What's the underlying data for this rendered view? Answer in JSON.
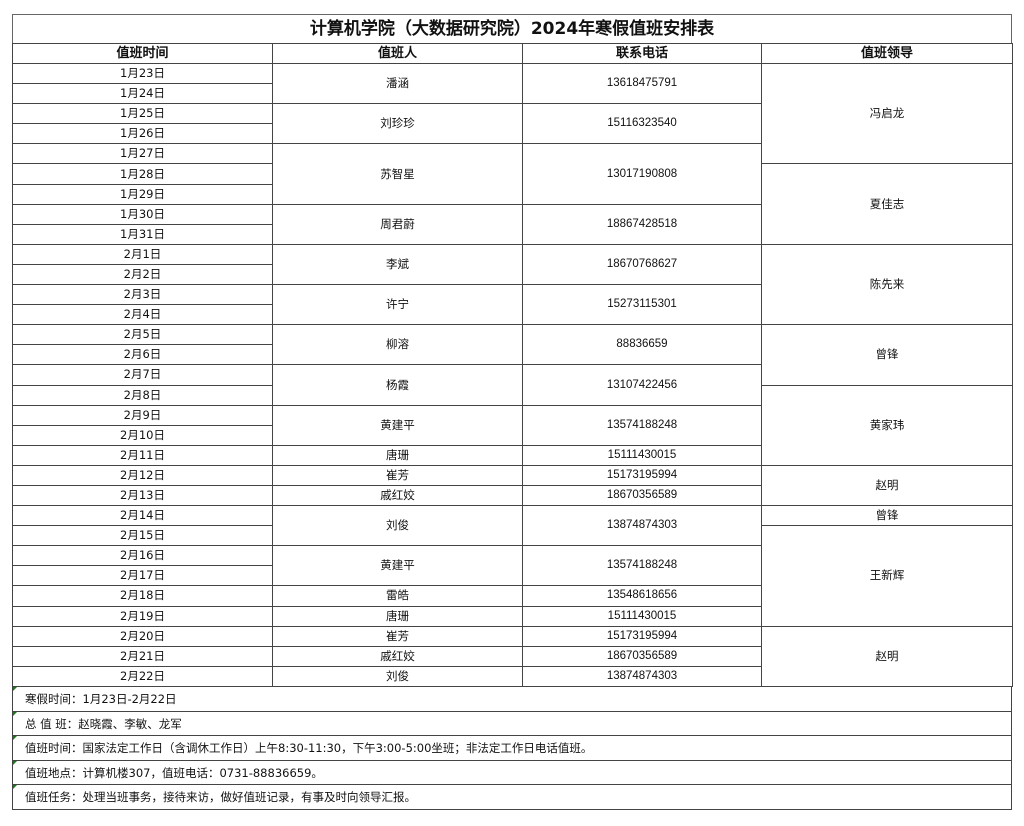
{
  "title": "计算机学院（大数据研究院）2024年寒假值班安排表",
  "headers": [
    "值班时间",
    "值班人",
    "联系电话",
    "值班领导"
  ],
  "dates": [
    "1月23日",
    "1月24日",
    "1月25日",
    "1月26日",
    "1月27日",
    "1月28日",
    "1月29日",
    "1月30日",
    "1月31日",
    "2月1日",
    "2月2日",
    "2月3日",
    "2月4日",
    "2月5日",
    "2月6日",
    "2月7日",
    "2月8日",
    "2月9日",
    "2月10日",
    "2月11日",
    "2月12日",
    "2月13日",
    "2月14日",
    "2月15日",
    "2月16日",
    "2月17日",
    "2月18日",
    "2月19日",
    "2月20日",
    "2月21日",
    "2月22日"
  ],
  "duty": [
    {
      "name": "潘涵",
      "phone": "13618475791",
      "from": "1月23日",
      "to": "1月24日"
    },
    {
      "name": "刘珍珍",
      "phone": "15116323540",
      "from": "1月25日",
      "to": "1月26日"
    },
    {
      "name": "苏智星",
      "phone": "13017190808",
      "from": "1月27日",
      "to": "1月29日"
    },
    {
      "name": "周君蔚",
      "phone": "18867428518",
      "from": "1月30日",
      "to": "1月31日"
    },
    {
      "name": "李斌",
      "phone": "18670768627",
      "from": "2月1日",
      "to": "2月2日"
    },
    {
      "name": "许宁",
      "phone": "15273115301",
      "from": "2月3日",
      "to": "2月4日"
    },
    {
      "name": "柳溶",
      "phone": "88836659",
      "from": "2月5日",
      "to": "2月6日"
    },
    {
      "name": "杨霞",
      "phone": "13107422456",
      "from": "2月7日",
      "to": "2月8日"
    },
    {
      "name": "黄建平",
      "phone": "13574188248",
      "from": "2月9日",
      "to": "2月10日"
    },
    {
      "name": "唐珊",
      "phone": "15111430015",
      "from": "2月11日",
      "to": "2月11日"
    },
    {
      "name": "崔芳",
      "phone": "15173195994",
      "from": "2月12日",
      "to": "2月12日"
    },
    {
      "name": "戚红姣",
      "phone": "18670356589",
      "from": "2月13日",
      "to": "2月13日"
    },
    {
      "name": "刘俊",
      "phone": "13874874303",
      "from": "2月14日",
      "to": "2月15日"
    },
    {
      "name": "黄建平",
      "phone": "13574188248",
      "from": "2月16日",
      "to": "2月17日"
    },
    {
      "name": "雷皓",
      "phone": "13548618656",
      "from": "2月18日",
      "to": "2月18日"
    },
    {
      "name": "唐珊",
      "phone": "15111430015",
      "from": "2月19日",
      "to": "2月19日"
    },
    {
      "name": "崔芳",
      "phone": "15173195994",
      "from": "2月20日",
      "to": "2月20日"
    },
    {
      "name": "戚红姣",
      "phone": "18670356589",
      "from": "2月21日",
      "to": "2月21日"
    },
    {
      "name": "刘俊",
      "phone": "13874874303",
      "from": "2月22日",
      "to": "2月22日"
    }
  ],
  "leaders": [
    {
      "name": "冯启龙",
      "from": "1月23日",
      "to": "1月27日"
    },
    {
      "name": "夏佳志",
      "from": "1月28日",
      "to": "1月31日"
    },
    {
      "name": "陈先来",
      "from": "2月1日",
      "to": "2月4日"
    },
    {
      "name": "曾锋",
      "from": "2月5日",
      "to": "2月7日"
    },
    {
      "name": "黄家玮",
      "from": "2月8日",
      "to": "2月11日"
    },
    {
      "name": "赵明",
      "from": "2月12日",
      "to": "2月13日"
    },
    {
      "name": "曾锋",
      "from": "2月14日",
      "to": "2月14日"
    },
    {
      "name": "王新辉",
      "from": "2月15日",
      "to": "2月19日"
    },
    {
      "name": "赵明",
      "from": "2月20日",
      "to": "2月22日"
    }
  ],
  "notes": [
    "寒假时间：1月23日-2月22日",
    "总 值 班：赵晓霞、李敏、龙军",
    "值班时间：国家法定工作日（含调休工作日）上午8:30-11:30，下午3:00-5:00坐班；非法定工作日电话值班。",
    "值班地点：计算机楼307，值班电话：0731-88836659。",
    "值班任务：处理当班事务，接待来访，做好值班记录，有事及时向领导汇报。"
  ]
}
